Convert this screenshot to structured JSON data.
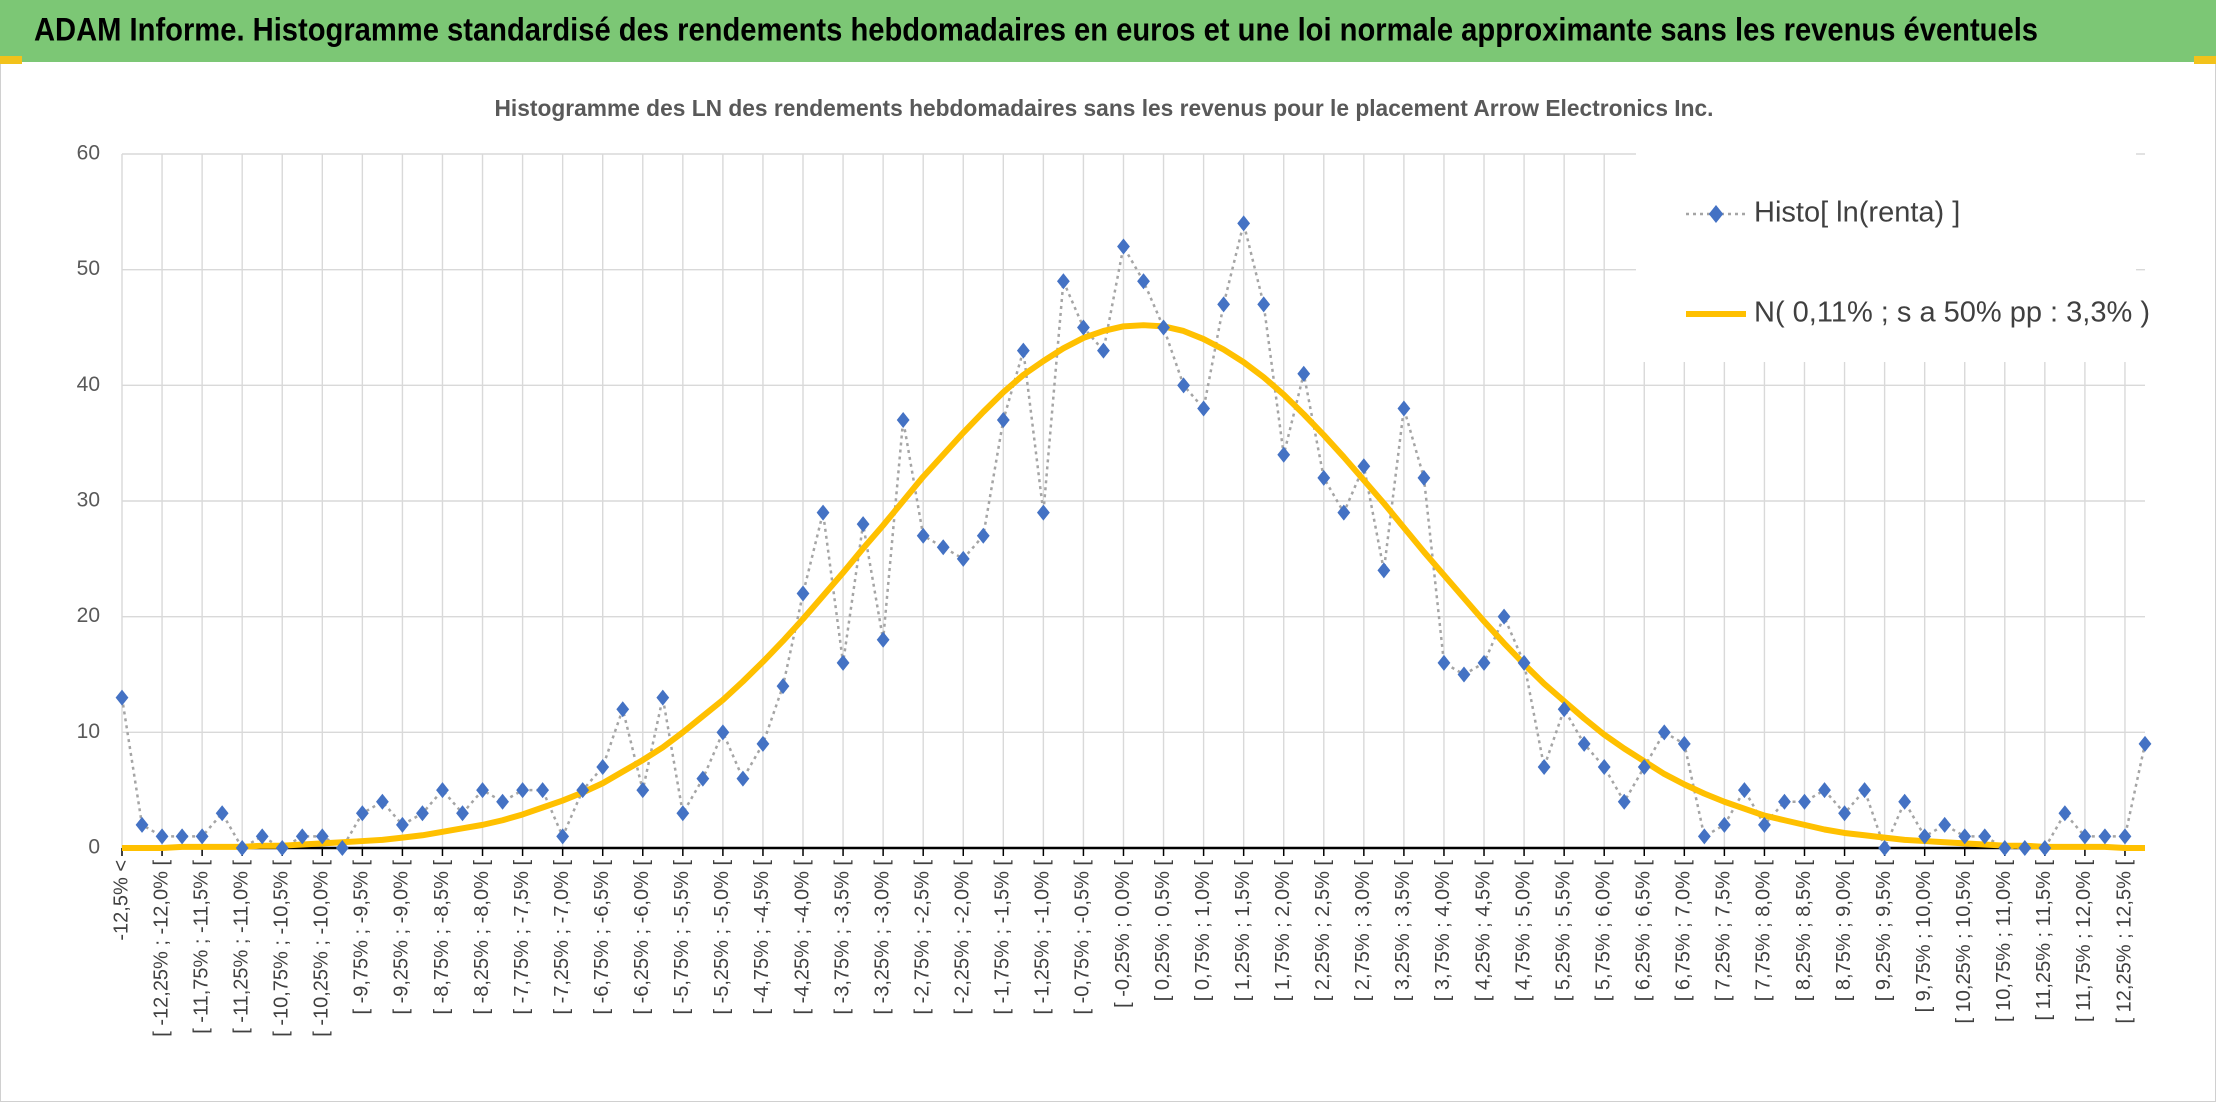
{
  "header": {
    "title": "ADAM Informe. Histogramme standardisé des rendements hebdomadaires en euros et une loi normale approximante sans les revenus éventuels"
  },
  "chart_data": {
    "type": "line",
    "title": "Histogramme des LN des rendements hebdomadaires sans les revenus pour le placement Arrow Electronics Inc.",
    "categories": [
      "-12,5% <",
      null,
      "[ -12,25% ; -12,0% [",
      null,
      "[ -11,75% ; -11,5% [",
      null,
      "[ -11,25% ; -11,0% [",
      null,
      "[ -10,75% ; -10,5% [",
      null,
      "[ -10,25% ; -10,0% [",
      null,
      "[ -9,75% ; -9,5% [",
      null,
      "[ -9,25% ; -9,0% [",
      null,
      "[ -8,75% ; -8,5% [",
      null,
      "[ -8,25% ; -8,0% [",
      null,
      "[ -7,75% ; -7,5% [",
      null,
      "[ -7,25% ; -7,0% [",
      null,
      "[ -6,75% ; -6,5% [",
      null,
      "[ -6,25% ; -6,0% [",
      null,
      "[ -5,75% ; -5,5% [",
      null,
      "[ -5,25% ; -5,0% [",
      null,
      "[ -4,75% ; -4,5% [",
      null,
      "[ -4,25% ; -4,0% [",
      null,
      "[ -3,75% ; -3,5% [",
      null,
      "[ -3,25% ; -3,0% [",
      null,
      "[ -2,75% ; -2,5% [",
      null,
      "[ -2,25% ; -2,0% [",
      null,
      "[ -1,75% ; -1,5% [",
      null,
      "[ -1,25% ; -1,0% [",
      null,
      "[ -0,75% ; -0,5% [",
      null,
      "[ -0,25% ; 0,0% [",
      null,
      "[ 0,25% ; 0,5% [",
      null,
      "[ 0,75% ; 1,0% [",
      null,
      "[ 1,25% ; 1,5% [",
      null,
      "[ 1,75% ; 2,0% [",
      null,
      "[ 2,25% ; 2,5% [",
      null,
      "[ 2,75% ; 3,0% [",
      null,
      "[ 3,25% ; 3,5% [",
      null,
      "[ 3,75% ; 4,0% [",
      null,
      "[ 4,25% ; 4,5% [",
      null,
      "[ 4,75% ; 5,0% [",
      null,
      "[ 5,25% ; 5,5% [",
      null,
      "[ 5,75% ; 6,0% [",
      null,
      "[ 6,25% ; 6,5% [",
      null,
      "[ 6,75% ; 7,0% [",
      null,
      "[ 7,25% ; 7,5% [",
      null,
      "[ 7,75% ; 8,0% [",
      null,
      "[ 8,25% ; 8,5% [",
      null,
      "[ 8,75% ; 9,0% [",
      null,
      "[ 9,25% ; 9,5% [",
      null,
      "[ 9,75% ; 10,0% [",
      null,
      "[ 10,25% ; 10,5% [",
      null,
      "[ 10,75% ; 11,0% [",
      null,
      "[ 11,25% ; 11,5% [",
      null,
      "[ 11,75% ; 12,0% [",
      null,
      "[ 12,25% ; 12,5% [",
      null
    ],
    "series": [
      {
        "name": "Histo[ ln(renta) ]",
        "color": "#4472c4",
        "line_color": "#a5a5a5",
        "line_style": "dotted",
        "marker": "diamond",
        "values": [
          13,
          2,
          1,
          1,
          1,
          3,
          0,
          1,
          0,
          1,
          1,
          0,
          3,
          4,
          2,
          3,
          5,
          3,
          5,
          4,
          5,
          5,
          1,
          5,
          7,
          12,
          5,
          13,
          3,
          6,
          10,
          6,
          9,
          14,
          22,
          29,
          16,
          28,
          18,
          37,
          27,
          26,
          25,
          27,
          37,
          43,
          29,
          49,
          45,
          43,
          52,
          49,
          45,
          40,
          38,
          47,
          54,
          47,
          34,
          41,
          32,
          29,
          33,
          24,
          38,
          32,
          16,
          15,
          16,
          20,
          16,
          7,
          12,
          9,
          7,
          4,
          7,
          10,
          9,
          1,
          2,
          5,
          2,
          4,
          4,
          5,
          3,
          5,
          0,
          4,
          1,
          2,
          1,
          1,
          0,
          0,
          0,
          3,
          1,
          1,
          1,
          9
        ]
      },
      {
        "name": "N( 0,11% ; s a 50% pp : 3,3% )",
        "color": "#ffc000",
        "line_style": "solid",
        "marker": "none",
        "values": [
          0.0,
          0.0,
          0.0,
          0.1,
          0.1,
          0.1,
          0.1,
          0.2,
          0.2,
          0.3,
          0.4,
          0.5,
          0.6,
          0.7,
          0.9,
          1.1,
          1.4,
          1.7,
          2.0,
          2.4,
          2.9,
          3.5,
          4.1,
          4.8,
          5.6,
          6.6,
          7.6,
          8.7,
          10.0,
          11.4,
          12.8,
          14.4,
          16.1,
          17.9,
          19.8,
          21.8,
          23.8,
          25.9,
          27.9,
          30.0,
          32.1,
          34.0,
          35.9,
          37.7,
          39.4,
          40.9,
          42.1,
          43.2,
          44.1,
          44.7,
          45.1,
          45.2,
          45.1,
          44.7,
          44.0,
          43.1,
          42.0,
          40.7,
          39.2,
          37.5,
          35.7,
          33.8,
          31.8,
          29.8,
          27.7,
          25.6,
          23.6,
          21.6,
          19.6,
          17.7,
          15.9,
          14.2,
          12.7,
          11.2,
          9.8,
          8.6,
          7.5,
          6.4,
          5.5,
          4.7,
          4.0,
          3.4,
          2.8,
          2.4,
          2.0,
          1.6,
          1.3,
          1.1,
          0.9,
          0.7,
          0.6,
          0.5,
          0.4,
          0.3,
          0.2,
          0.2,
          0.1,
          0.1,
          0.1,
          0.1,
          0.0,
          0.0
        ]
      }
    ],
    "ylim": [
      0,
      60
    ],
    "yticks": [
      0,
      10,
      20,
      30,
      40,
      50,
      60
    ],
    "grid": true,
    "legend": "upper right"
  }
}
